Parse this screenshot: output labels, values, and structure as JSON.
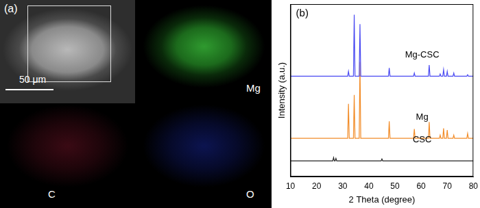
{
  "panel_a": {
    "label": "(a)",
    "scale_bar": "50 μm",
    "maps": [
      "Mg",
      "C",
      "O"
    ]
  },
  "chart_data": {
    "type": "line",
    "annotations": [
      "(b)"
    ],
    "x_label": "2 Theta (degree)",
    "y_label": "Intensity (a.u.)",
    "xlim": [
      10,
      80
    ],
    "xticks": [
      10,
      20,
      30,
      40,
      50,
      60,
      70,
      80
    ],
    "ylim": [
      0,
      100
    ],
    "tick_labels": "x",
    "grid": false,
    "series": [
      {
        "name": "Mg-CSC",
        "color": "#4a4af2",
        "x": [
          10,
          31.9,
          32.2,
          32.5,
          34.1,
          34.4,
          34.7,
          36.3,
          36.6,
          36.9,
          47.5,
          47.8,
          48.1,
          57.1,
          57.4,
          57.7,
          62.8,
          63.1,
          63.4,
          67.0,
          67.3,
          67.6,
          68.3,
          68.6,
          68.9,
          69.7,
          70.0,
          70.3,
          72.2,
          72.5,
          72.8,
          77.5,
          77.8,
          78.1,
          80
        ],
        "values": [
          58.2,
          58.2,
          61,
          58.2,
          58.2,
          93.8,
          58.2,
          58.2,
          88.4,
          58.2,
          58.2,
          63,
          58.2,
          58.2,
          60,
          58.2,
          58.2,
          64.7,
          58.2,
          58.2,
          59.5,
          58.2,
          58.2,
          62,
          58.2,
          58.2,
          61,
          58.2,
          58.2,
          60,
          58.2,
          58.2,
          59,
          58.2,
          58.2
        ]
      },
      {
        "name": "Mg",
        "color": "#f28c28",
        "x": [
          10,
          31.9,
          32.2,
          32.5,
          34.1,
          34.4,
          34.7,
          36.3,
          36.6,
          36.9,
          47.5,
          47.8,
          48.1,
          57.1,
          57.4,
          57.7,
          62.8,
          63.1,
          63.4,
          67.0,
          67.3,
          67.6,
          68.3,
          68.6,
          68.9,
          69.7,
          70.0,
          70.3,
          72.2,
          72.5,
          72.8,
          77.5,
          77.8,
          78.1,
          80
        ],
        "values": [
          22.2,
          22.2,
          42.2,
          22.2,
          22.2,
          47.3,
          22.2,
          22.2,
          66.5,
          22.2,
          22.2,
          32,
          22.2,
          22.2,
          27.6,
          22.2,
          22.2,
          31.6,
          22.2,
          22.2,
          24,
          22.2,
          22.2,
          28,
          22.2,
          22.2,
          27,
          22.2,
          22.2,
          24,
          22.2,
          22.2,
          25,
          22.2,
          22.2
        ]
      },
      {
        "name": "CSC",
        "color": "#222222",
        "x": [
          10,
          26.2,
          26.5,
          26.8,
          27.1,
          27.4,
          27.7,
          44.7,
          45,
          45.3,
          80
        ],
        "values": [
          9.1,
          9.1,
          11,
          9.1,
          9.1,
          10.5,
          9.1,
          9.1,
          10.2,
          9.1,
          9.1
        ]
      }
    ]
  }
}
